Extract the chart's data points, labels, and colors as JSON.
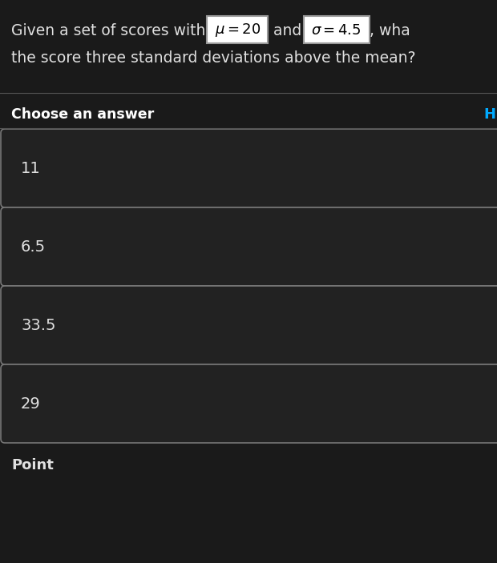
{
  "background_color": "#1a1a1a",
  "answers": [
    "11",
    "6.5",
    "33.5",
    "29"
  ],
  "footer": "Point",
  "text_color": "#e0e0e0",
  "box_bg_color": "#222222",
  "box_border_color": "#777777",
  "choose_color": "#ffffff",
  "hint_color": "#00aaff",
  "separator_color": "#555555",
  "fig_w": 6.2,
  "fig_h": 7.03,
  "dpi": 100
}
